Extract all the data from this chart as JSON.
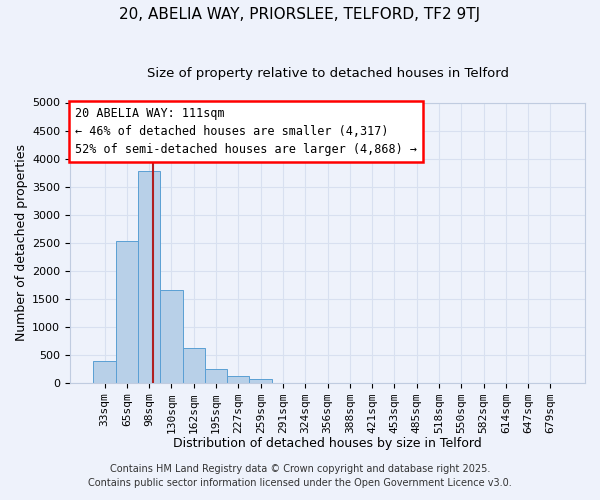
{
  "title": "20, ABELIA WAY, PRIORSLEE, TELFORD, TF2 9TJ",
  "subtitle": "Size of property relative to detached houses in Telford",
  "xlabel": "Distribution of detached houses by size in Telford",
  "ylabel": "Number of detached properties",
  "categories": [
    "33sqm",
    "65sqm",
    "98sqm",
    "130sqm",
    "162sqm",
    "195sqm",
    "227sqm",
    "259sqm",
    "291sqm",
    "324sqm",
    "356sqm",
    "388sqm",
    "421sqm",
    "453sqm",
    "485sqm",
    "518sqm",
    "550sqm",
    "582sqm",
    "614sqm",
    "647sqm",
    "679sqm"
  ],
  "values": [
    380,
    2530,
    3780,
    1650,
    620,
    235,
    110,
    60,
    0,
    0,
    0,
    0,
    0,
    0,
    0,
    0,
    0,
    0,
    0,
    0,
    0
  ],
  "bar_color": "#b8d0e8",
  "bar_edge_color": "#5a9fd4",
  "ylim": [
    0,
    5000
  ],
  "yticks": [
    0,
    500,
    1000,
    1500,
    2000,
    2500,
    3000,
    3500,
    4000,
    4500,
    5000
  ],
  "vline_x": 2.15,
  "vline_color": "#b02020",
  "annotation_line1": "20 ABELIA WAY: 111sqm",
  "annotation_line2": "← 46% of detached houses are smaller (4,317)",
  "annotation_line3": "52% of semi-detached houses are larger (4,868) →",
  "footer_line1": "Contains HM Land Registry data © Crown copyright and database right 2025.",
  "footer_line2": "Contains public sector information licensed under the Open Government Licence v3.0.",
  "background_color": "#eef2fb",
  "grid_color": "#d8e0f0",
  "title_fontsize": 11,
  "subtitle_fontsize": 9.5,
  "axis_label_fontsize": 9,
  "tick_fontsize": 8,
  "annotation_fontsize": 8.5,
  "footer_fontsize": 7
}
